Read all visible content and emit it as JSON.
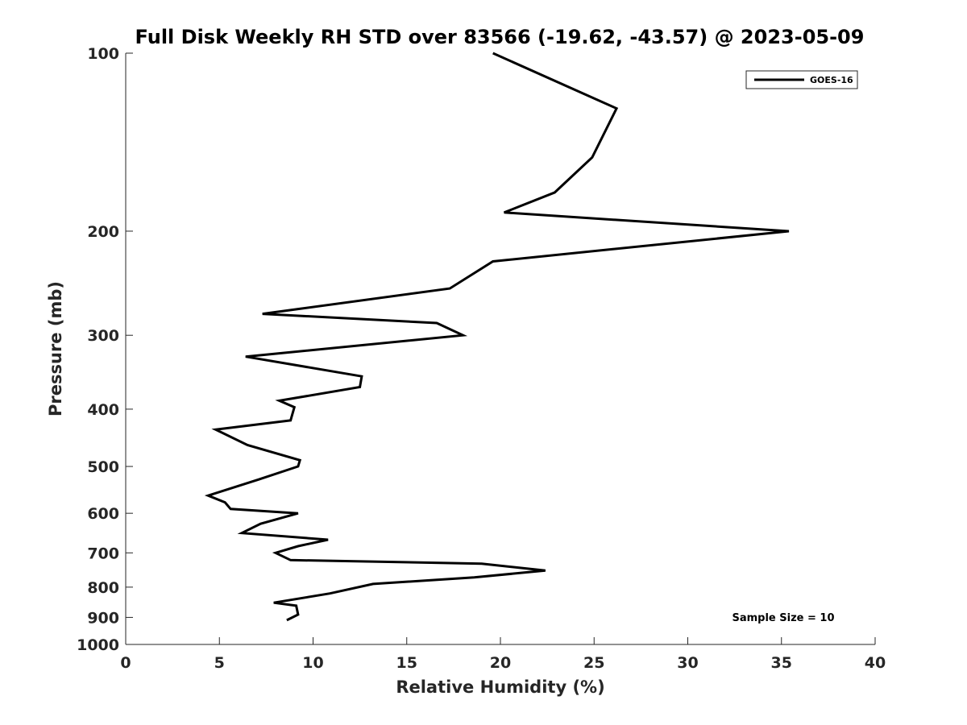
{
  "chart_data": {
    "type": "line",
    "title": "Full Disk Weekly RH STD over 83566 (-19.62, -43.57) @ 2023-05-09",
    "xlabel": "Relative Humidity (%)",
    "ylabel": "Pressure (mb)",
    "xlim": [
      0,
      40
    ],
    "ylim": [
      100,
      1000
    ],
    "yscale": "log",
    "y_reversed": true,
    "grid": false,
    "legend_placement": "top-right",
    "xticks": [
      0,
      5,
      10,
      15,
      20,
      25,
      30,
      35,
      40
    ],
    "yticks": [
      100,
      200,
      300,
      400,
      500,
      600,
      700,
      800,
      900,
      1000
    ],
    "annotation": "Sample Size = 10",
    "series": [
      {
        "name": "GOES-16",
        "color": "#000000",
        "x": [
          19.6,
          26.2,
          24.9,
          22.9,
          20.2,
          35.4,
          19.6,
          17.3,
          7.3,
          16.6,
          18.0,
          6.4,
          12.6,
          12.5,
          8.2,
          9.0,
          8.8,
          4.8,
          6.5,
          9.3,
          9.2,
          7.1,
          4.4,
          5.3,
          5.6,
          9.2,
          7.2,
          6.2,
          10.8,
          9.2,
          8.0,
          8.8,
          19.0,
          22.4,
          18.6,
          13.2,
          10.9,
          7.9,
          9.1,
          9.2,
          8.6
        ],
        "y": [
          100,
          124,
          150,
          172,
          186,
          200,
          225,
          250,
          276,
          286,
          300,
          326,
          352,
          367,
          387,
          397,
          418,
          433,
          460,
          488,
          500,
          526,
          560,
          575,
          590,
          600,
          625,
          648,
          665,
          682,
          700,
          720,
          730,
          750,
          770,
          790,
          820,
          850,
          860,
          890,
          910
        ]
      }
    ]
  }
}
